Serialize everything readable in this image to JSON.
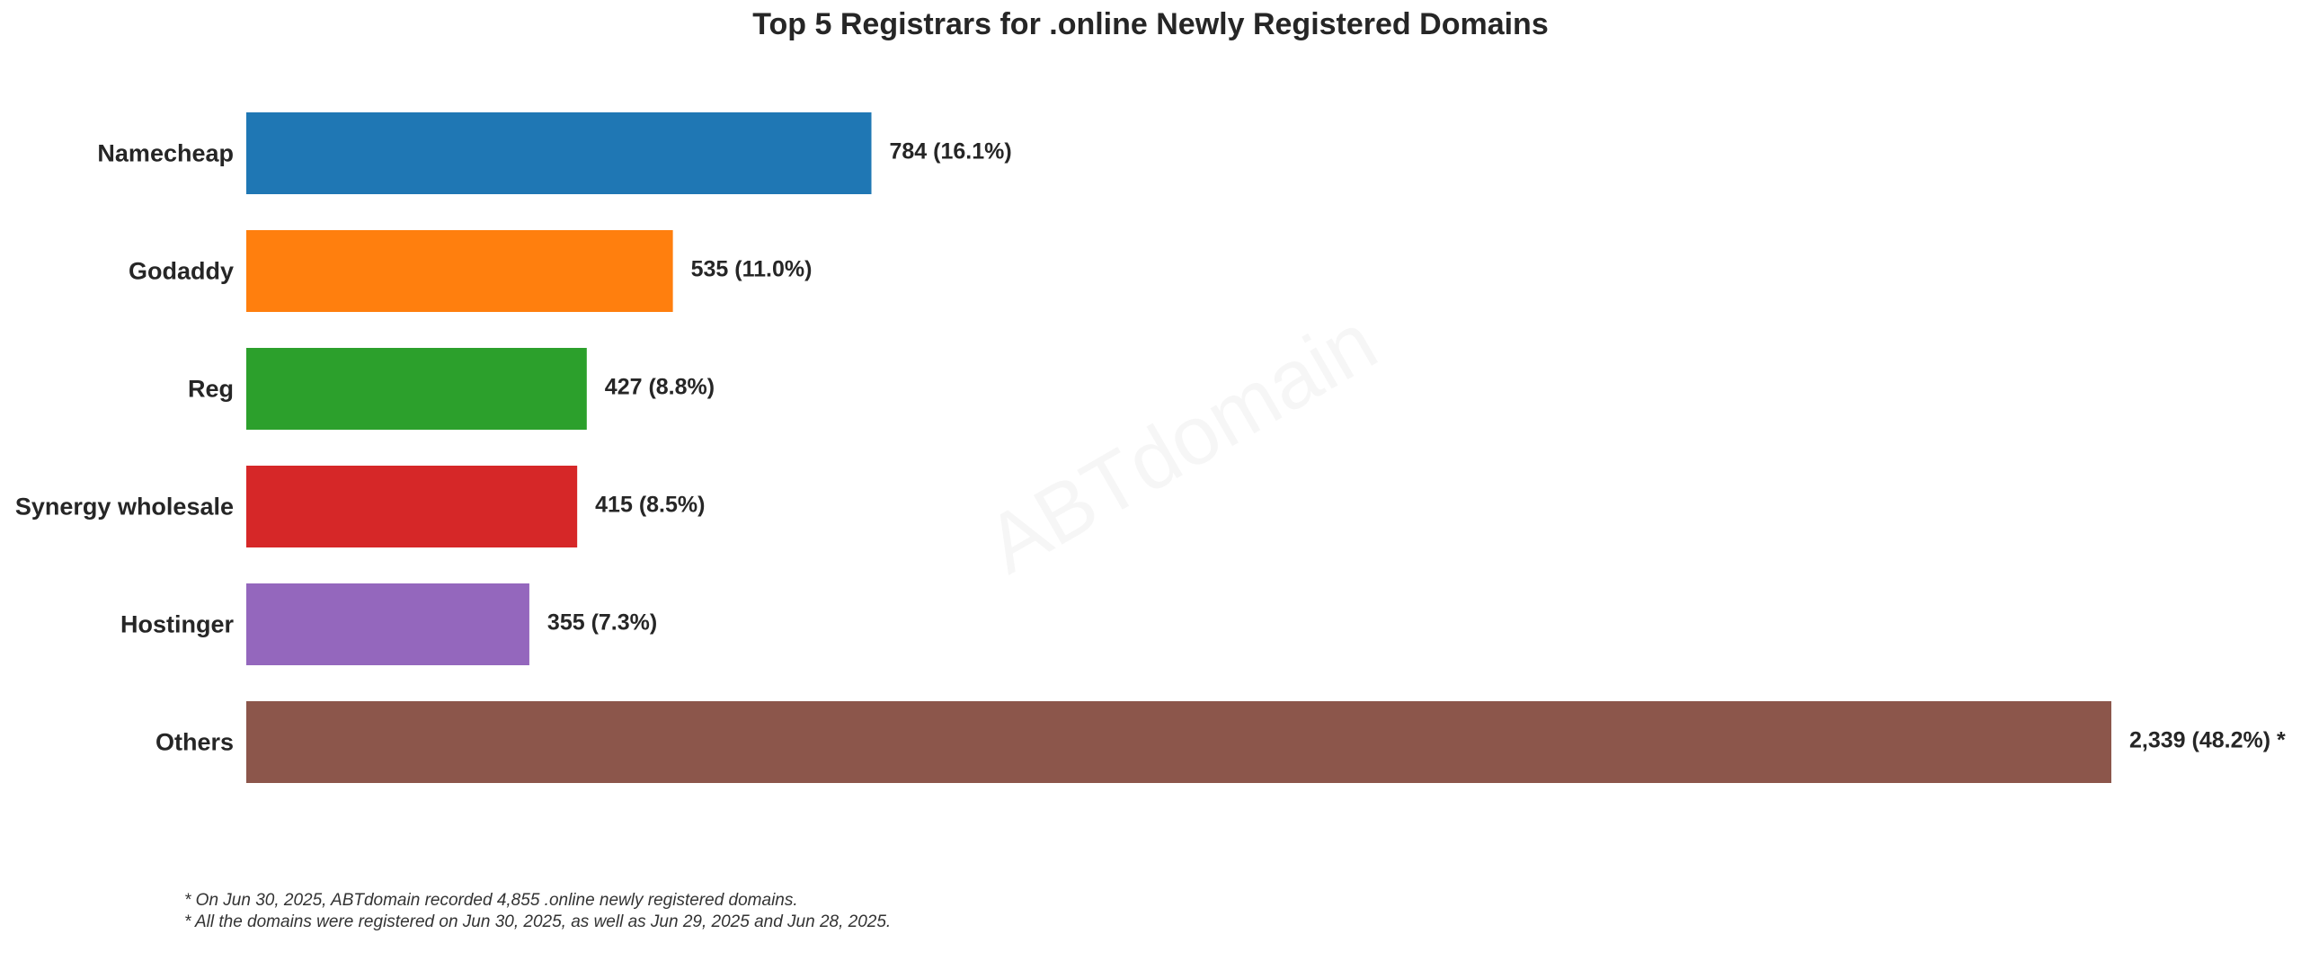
{
  "chart_data": {
    "type": "bar",
    "orientation": "horizontal",
    "title": "Top 5 Registrars for .online Newly Registered Domains",
    "categories": [
      "Namecheap",
      "Godaddy",
      "Reg",
      "Synergy wholesale",
      "Hostinger",
      "Others"
    ],
    "values": [
      784,
      535,
      427,
      415,
      355,
      2339
    ],
    "value_labels": [
      "784 (16.1%)",
      "535 (11.0%)",
      "427 (8.8%)",
      "415 (8.5%)",
      "355 (7.3%)",
      "2,339 (48.2%) *"
    ],
    "colors": [
      "#1f77b4",
      "#ff7f0e",
      "#2ca02c",
      "#d62728",
      "#9467bd",
      "#8c564b"
    ],
    "xlim": [
      0,
      2339
    ],
    "grid": false,
    "xlabel": "",
    "ylabel": ""
  },
  "watermark": "ABTdomain",
  "footnotes": [
    "* On Jun 30, 2025, ABTdomain recorded 4,855 .online newly registered domains.",
    "* All the domains were registered on Jun 30, 2025, as well as Jun 29, 2025 and Jun 28, 2025."
  ]
}
